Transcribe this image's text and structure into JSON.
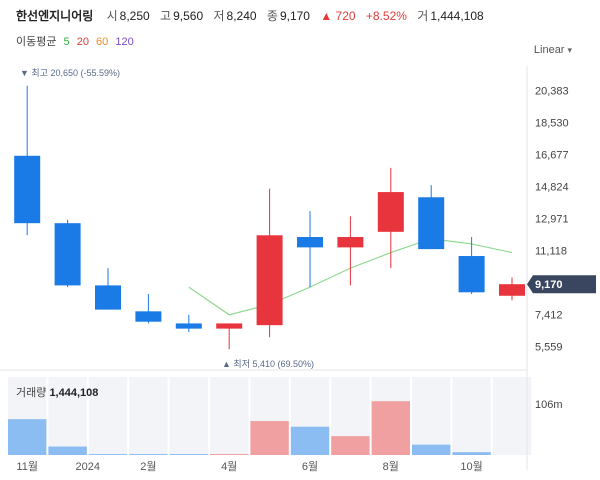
{
  "header": {
    "name": "한선엔지니어링",
    "open_label": "시",
    "open": "8,250",
    "high_label": "고",
    "high": "9,560",
    "low_label": "저",
    "low": "8,240",
    "close_label": "종",
    "close": "9,170",
    "change": "▲ 720",
    "change_pct": "+8.52%",
    "volume_label": "거",
    "volume": "1,444,108"
  },
  "moving_average": {
    "label": "이동평균",
    "periods": [
      {
        "text": "5",
        "color": "#3cb043"
      },
      {
        "text": "20",
        "color": "#e23b3b"
      },
      {
        "text": "60",
        "color": "#f08a24"
      },
      {
        "text": "120",
        "color": "#7a4ec9"
      }
    ]
  },
  "scale_button": "Linear",
  "colors": {
    "up": "#e8343c",
    "down": "#1a7ae6",
    "ma5": "#8fd98f",
    "vol_up": "#f0a0a0",
    "vol_down": "#8cbdf2"
  },
  "annotations": {
    "max_text": "▼ 최고 20,650 (-55.59%)",
    "min_text": "▲ 최저 5,410 (69.50%)"
  },
  "current_price_label": "9,170",
  "volume_panel": {
    "label": "거래량",
    "value": "1,444,108",
    "axis_label": "106m"
  },
  "chart_data": {
    "type": "candlestick",
    "y_ticks": [
      "20,383",
      "18,530",
      "16,677",
      "14,824",
      "12,971",
      "11,118",
      "7,412",
      "5,559"
    ],
    "y_tick_values": [
      20383,
      18530,
      16677,
      14824,
      12971,
      11118,
      7412,
      5559
    ],
    "x_tick_labels": [
      "11월",
      "2024",
      "2월",
      "4월",
      "6월",
      "8월",
      "10월"
    ],
    "x_tick_positions": [
      0,
      1.5,
      3,
      5,
      7,
      9,
      11
    ],
    "ylim": [
      4900,
      21100
    ],
    "candles": [
      {
        "open": 16600,
        "high": 20650,
        "low": 12000,
        "close": 12700
      },
      {
        "open": 12700,
        "high": 12900,
        "low": 9000,
        "close": 9100
      },
      {
        "open": 9100,
        "high": 10100,
        "low": 7700,
        "close": 7700
      },
      {
        "open": 7600,
        "high": 8600,
        "low": 6900,
        "close": 7000
      },
      {
        "open": 6900,
        "high": 7400,
        "low": 6400,
        "close": 6600
      },
      {
        "open": 6600,
        "high": 6900,
        "low": 5410,
        "close": 6900
      },
      {
        "open": 6800,
        "high": 14700,
        "low": 6100,
        "close": 12000
      },
      {
        "open": 11900,
        "high": 13400,
        "low": 9000,
        "close": 11300
      },
      {
        "open": 11300,
        "high": 13100,
        "low": 9100,
        "close": 11900
      },
      {
        "open": 12200,
        "high": 15900,
        "low": 10100,
        "close": 14500
      },
      {
        "open": 14200,
        "high": 14900,
        "low": 11200,
        "close": 11200
      },
      {
        "open": 10800,
        "high": 11900,
        "low": 8600,
        "close": 8700
      },
      {
        "open": 8500,
        "high": 9560,
        "low": 8240,
        "close": 9170
      }
    ],
    "ma5": [
      null,
      null,
      null,
      null,
      9000,
      7400,
      8000,
      9000,
      10100,
      11000,
      11800,
      11500,
      11000
    ],
    "volume": [
      38,
      9,
      1,
      1,
      1,
      1,
      36,
      30,
      20,
      57,
      11,
      3,
      0
    ],
    "volume_max": 106,
    "volume_unit": "m"
  }
}
